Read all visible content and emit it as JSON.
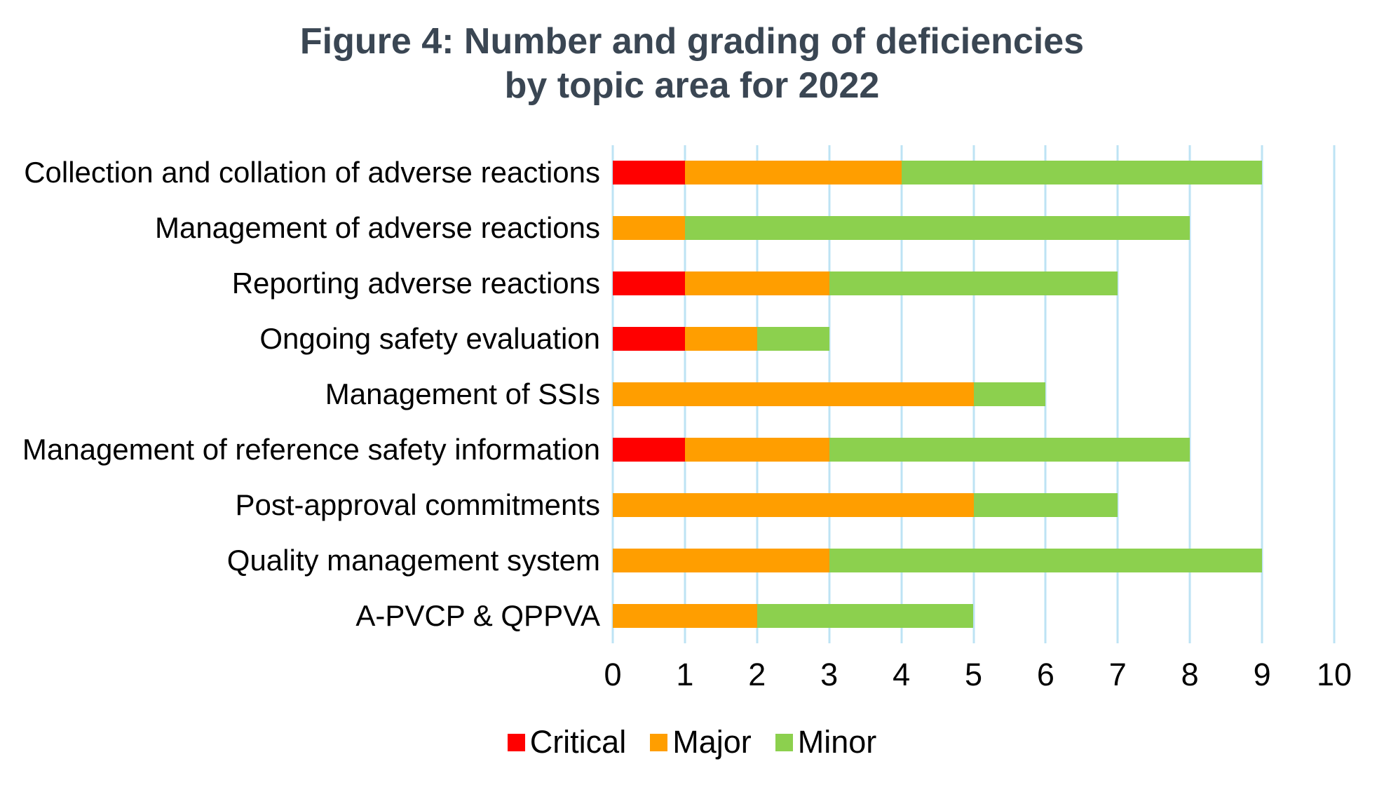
{
  "header": {
    "title_line1": "Figure 4: Number and grading of deficiencies",
    "title_line2": "by topic area for 2022"
  },
  "chart_data": {
    "type": "bar",
    "orientation": "horizontal",
    "stacked": true,
    "title": "Figure 4: Number and grading of deficiencies by topic area for 2022",
    "categories": [
      "Collection and collation of adverse reactions",
      "Management of adverse reactions",
      "Reporting adverse reactions",
      "Ongoing safety evaluation",
      "Management of SSIs",
      "Management of reference safety information",
      "Post-approval commitments",
      "Quality management system",
      "A-PVCP & QPPVA"
    ],
    "series": [
      {
        "name": "Critical",
        "color": "#FF0000",
        "values": [
          1,
          0,
          1,
          1,
          0,
          1,
          0,
          0,
          0
        ]
      },
      {
        "name": "Major",
        "color": "#FF9E00",
        "values": [
          3,
          1,
          2,
          1,
          5,
          2,
          5,
          3,
          2
        ]
      },
      {
        "name": "Minor",
        "color": "#8CD04E",
        "values": [
          5,
          7,
          4,
          1,
          1,
          5,
          2,
          6,
          3
        ]
      }
    ],
    "totals": [
      9,
      8,
      7,
      3,
      6,
      8,
      7,
      9,
      5
    ],
    "xlabel": "",
    "ylabel": "",
    "xlim": [
      0,
      10
    ],
    "xticks": [
      0,
      1,
      2,
      3,
      4,
      5,
      6,
      7,
      8,
      9,
      10
    ],
    "grid": "vertical",
    "gridline_color": "#BDE3F4",
    "legend_position": "bottom",
    "legend": [
      "Critical",
      "Major",
      "Minor"
    ],
    "title_color": "#3a4653",
    "text_color": "#000000",
    "background_color": "#FFFFFF"
  }
}
